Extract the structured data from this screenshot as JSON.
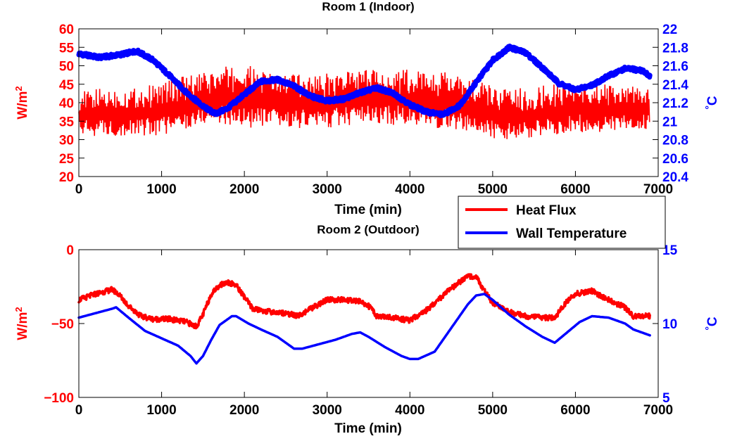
{
  "legend": {
    "position": "between-panels-right",
    "entries": [
      {
        "label": "Heat Flux",
        "color": "#ff0000"
      },
      {
        "label": "Wall Temperature",
        "color": "#0000ff"
      }
    ]
  },
  "chart_data": [
    {
      "type": "line",
      "title": "Room 1 (Indoor)",
      "xlabel": "Time (min)",
      "ylabel_left": "W/m²",
      "ylabel_right": "°C",
      "xlim": [
        0,
        7000
      ],
      "ylim_left": [
        20,
        60
      ],
      "ylim_right": [
        20.4,
        22
      ],
      "x_ticks": [
        "0",
        "1000",
        "2000",
        "3000",
        "4000",
        "5000",
        "6000",
        "7000"
      ],
      "y_ticks_left": [
        "20",
        "25",
        "30",
        "35",
        "40",
        "45",
        "50",
        "55",
        "60"
      ],
      "y_ticks_right": [
        "20.4",
        "20.6",
        "20.8",
        "21",
        "21.2",
        "21.4",
        "21.6",
        "21.8",
        "22"
      ],
      "grid": false,
      "series": [
        {
          "name": "Heat Flux",
          "axis": "left",
          "color": "#ff0000",
          "style": "high-frequency oscillation",
          "x": [
            0,
            300,
            600,
            900,
            1200,
            1500,
            1800,
            2100,
            2400,
            2700,
            3000,
            3300,
            3600,
            3900,
            4200,
            4500,
            4800,
            5100,
            5400,
            5700,
            6000,
            6300,
            6600,
            6900
          ],
          "y_low": [
            31,
            31,
            31,
            31,
            32,
            34,
            34,
            33,
            33,
            33,
            33,
            34,
            34,
            34,
            33,
            33,
            31,
            30,
            30,
            31,
            32,
            32,
            32,
            33
          ],
          "y_high": [
            43,
            44,
            44,
            45,
            47,
            48,
            50,
            50,
            48,
            48,
            48,
            49,
            49,
            49,
            49,
            48,
            46,
            44,
            44,
            45,
            46,
            45,
            45,
            44
          ]
        },
        {
          "name": "Wall Temperature",
          "axis": "right",
          "color": "#0000ff",
          "style": "thick noisy line",
          "x": [
            0,
            250,
            500,
            700,
            900,
            1100,
            1300,
            1500,
            1650,
            1800,
            2000,
            2200,
            2400,
            2600,
            2800,
            3000,
            3200,
            3400,
            3600,
            3800,
            4000,
            4200,
            4400,
            4600,
            4800,
            5000,
            5200,
            5400,
            5600,
            5800,
            6000,
            6200,
            6400,
            6600,
            6800,
            6900
          ],
          "y": [
            21.73,
            21.69,
            21.72,
            21.76,
            21.66,
            21.49,
            21.31,
            21.16,
            21.08,
            21.14,
            21.29,
            21.43,
            21.45,
            21.38,
            21.27,
            21.22,
            21.24,
            21.31,
            21.36,
            21.3,
            21.18,
            21.1,
            21.07,
            21.17,
            21.42,
            21.66,
            21.8,
            21.74,
            21.58,
            21.41,
            21.34,
            21.39,
            21.49,
            21.57,
            21.55,
            21.49
          ]
        }
      ]
    },
    {
      "type": "line",
      "title": "Room 2 (Outdoor)",
      "xlabel": "Time (min)",
      "ylabel_left": "W/m²",
      "ylabel_right": "°C",
      "xlim": [
        0,
        7000
      ],
      "ylim_left": [
        -100,
        0
      ],
      "ylim_right": [
        5,
        15
      ],
      "x_ticks": [
        "0",
        "1000",
        "2000",
        "3000",
        "4000",
        "5000",
        "6000",
        "7000"
      ],
      "y_ticks_left": [
        "−100",
        "−50",
        "0"
      ],
      "y_ticks_right": [
        "5",
        "10",
        "15"
      ],
      "grid": false,
      "series": [
        {
          "name": "Heat Flux",
          "axis": "left",
          "color": "#ff0000",
          "style": "slightly noisy line",
          "x": [
            0,
            200,
            400,
            480,
            600,
            750,
            900,
            1100,
            1300,
            1420,
            1500,
            1600,
            1700,
            1800,
            1900,
            2000,
            2100,
            2300,
            2500,
            2650,
            2800,
            3000,
            3200,
            3400,
            3500,
            3600,
            3800,
            4000,
            4200,
            4400,
            4600,
            4700,
            4800,
            4900,
            5000,
            5200,
            5400,
            5600,
            5750,
            5900,
            6000,
            6200,
            6400,
            6600,
            6700,
            6900
          ],
          "y": [
            -34,
            -30,
            -27,
            -30,
            -38,
            -45,
            -47,
            -47,
            -49,
            -52,
            -44,
            -30,
            -24,
            -22,
            -24,
            -32,
            -40,
            -42,
            -43,
            -45,
            -40,
            -34,
            -34,
            -35,
            -38,
            -45,
            -46,
            -48,
            -41,
            -31,
            -22,
            -18,
            -18,
            -28,
            -36,
            -42,
            -45,
            -46,
            -46,
            -35,
            -30,
            -28,
            -34,
            -39,
            -45,
            -45
          ]
        },
        {
          "name": "Wall Temperature",
          "axis": "right",
          "color": "#0000ff",
          "style": "smooth line",
          "x": [
            0,
            200,
            400,
            450,
            600,
            800,
            1000,
            1200,
            1350,
            1420,
            1500,
            1600,
            1700,
            1850,
            1900,
            2050,
            2200,
            2400,
            2600,
            2700,
            2900,
            3100,
            3300,
            3400,
            3500,
            3700,
            3900,
            4000,
            4100,
            4300,
            4500,
            4700,
            4800,
            4900,
            5000,
            5200,
            5400,
            5600,
            5750,
            5900,
            6050,
            6200,
            6400,
            6600,
            6700,
            6900
          ],
          "y": [
            10.4,
            10.7,
            11.0,
            11.1,
            10.4,
            9.5,
            9.0,
            8.5,
            7.8,
            7.3,
            7.8,
            8.9,
            9.9,
            10.5,
            10.5,
            10.0,
            9.6,
            9.1,
            8.3,
            8.3,
            8.6,
            8.9,
            9.3,
            9.4,
            9.1,
            8.4,
            7.8,
            7.6,
            7.6,
            8.1,
            9.7,
            11.3,
            11.9,
            12.0,
            11.6,
            10.6,
            9.8,
            9.1,
            8.7,
            9.4,
            10.1,
            10.5,
            10.4,
            10.0,
            9.6,
            9.2
          ]
        }
      ]
    }
  ]
}
